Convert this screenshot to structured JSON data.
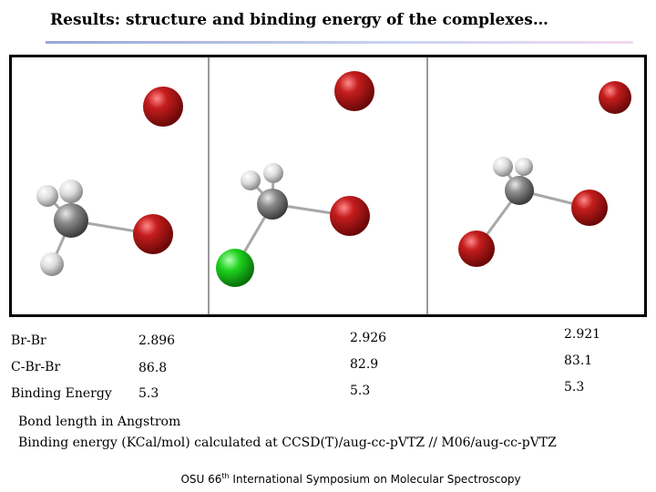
{
  "title": "Results: structure and binding energy of the complexes…",
  "table": {
    "rows": [
      [
        "Br-Br",
        "2.896",
        "2.926",
        "2.921"
      ],
      [
        "C-Br-Br",
        "86.8",
        "82.9",
        "83.1"
      ],
      [
        "Binding Energy",
        "5.3",
        "5.3",
        "5.3"
      ]
    ]
  },
  "notes": [
    "Bond length in Angstrom",
    "Binding energy (KCal/mol) calculated at CCSD(T)/aug-cc-pVTZ // M06/aug-cc-pVTZ"
  ],
  "footer": {
    "before": "OSU 66",
    "superscript": "th",
    "after": " International Symposium on Molecular Spectroscopy"
  }
}
